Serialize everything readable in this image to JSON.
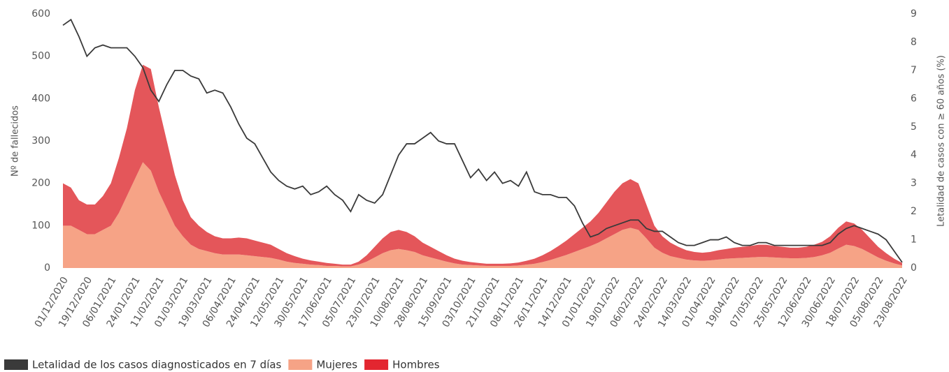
{
  "chart_data": {
    "type": "area",
    "stacked": true,
    "ylabel": "Nº de fallecidos",
    "y2label": "Letalidad de casos con ≥ 60 años (%)",
    "ylim": [
      0,
      600
    ],
    "yticks": [
      0,
      100,
      200,
      300,
      400,
      500,
      600
    ],
    "y2lim": [
      0,
      9
    ],
    "y2ticks": [
      0,
      1,
      2,
      3,
      4,
      5,
      6,
      7,
      8,
      9
    ],
    "categories": [
      "01/12/2020",
      null,
      null,
      "19/12/2020",
      null,
      null,
      "06/01/2021",
      null,
      null,
      "24/01/2021",
      null,
      null,
      "11/02/2021",
      null,
      null,
      "01/03/2021",
      null,
      null,
      "19/03/2021",
      null,
      null,
      "06/04/2021",
      null,
      null,
      "24/04/2021",
      null,
      null,
      "12/05/2021",
      null,
      null,
      "30/05/2021",
      null,
      null,
      "17/06/2021",
      null,
      null,
      "05/07/2021",
      null,
      null,
      "23/07/2021",
      null,
      null,
      "10/08/2021",
      null,
      null,
      "28/08/2021",
      null,
      null,
      "15/09/2021",
      null,
      null,
      "03/10/2021",
      null,
      null,
      "21/10/2021",
      null,
      null,
      "08/11/2021",
      null,
      null,
      "26/11/2021",
      null,
      null,
      "14/12/2021",
      null,
      null,
      "01/01/2022",
      null,
      null,
      "19/01/2022",
      null,
      null,
      "06/02/2022",
      null,
      null,
      "24/02/2022",
      null,
      null,
      "14/03/2022",
      null,
      null,
      "01/04/2022",
      null,
      null,
      "19/04/2022",
      null,
      null,
      "07/05/2022",
      null,
      null,
      "25/05/2022",
      null,
      null,
      "12/06/2022",
      null,
      null,
      "30/06/2022",
      null,
      null,
      "18/07/2022",
      null,
      null,
      "05/08/2022",
      null,
      null,
      "23/08/2022"
    ],
    "series": [
      {
        "name": "Letalidad de los casos diagnosticados en 7 días",
        "color": "#3a3a3a",
        "type": "line",
        "axis": "y2",
        "values": [
          8.6,
          8.8,
          8.2,
          7.5,
          7.8,
          7.9,
          7.8,
          7.8,
          7.8,
          7.5,
          7.1,
          6.3,
          5.9,
          6.5,
          7.0,
          7.0,
          6.8,
          6.7,
          6.2,
          6.3,
          6.2,
          5.7,
          5.1,
          4.6,
          4.4,
          3.9,
          3.4,
          3.1,
          2.9,
          2.8,
          2.9,
          2.6,
          2.7,
          2.9,
          2.6,
          2.4,
          2.0,
          2.6,
          2.4,
          2.3,
          2.6,
          3.3,
          4.0,
          4.4,
          4.4,
          4.6,
          4.8,
          4.5,
          4.4,
          4.4,
          3.8,
          3.2,
          3.5,
          3.1,
          3.4,
          3.0,
          3.1,
          2.9,
          3.4,
          2.7,
          2.6,
          2.6,
          2.5,
          2.5,
          2.2,
          1.6,
          1.1,
          1.2,
          1.4,
          1.5,
          1.6,
          1.7,
          1.7,
          1.4,
          1.3,
          1.3,
          1.1,
          0.9,
          0.8,
          0.8,
          0.9,
          1.0,
          1.0,
          1.1,
          0.9,
          0.8,
          0.8,
          0.9,
          0.9,
          0.8,
          0.8,
          0.8,
          0.8,
          0.8,
          0.8,
          0.8,
          0.9,
          1.2,
          1.4,
          1.5,
          1.4,
          1.3,
          1.2,
          1.0,
          0.6,
          0.2
        ]
      },
      {
        "name": "Mujeres",
        "color": "#f6a386",
        "type": "area",
        "values": [
          100,
          100,
          90,
          80,
          80,
          90,
          100,
          130,
          170,
          210,
          250,
          230,
          180,
          140,
          100,
          75,
          55,
          45,
          40,
          35,
          32,
          32,
          32,
          30,
          28,
          26,
          24,
          20,
          15,
          12,
          10,
          8,
          7,
          5,
          5,
          4,
          4,
          8,
          15,
          25,
          35,
          42,
          45,
          42,
          38,
          30,
          25,
          20,
          15,
          11,
          8,
          7,
          6,
          5,
          5,
          5,
          5,
          6,
          8,
          10,
          14,
          19,
          25,
          31,
          38,
          45,
          52,
          60,
          70,
          80,
          90,
          95,
          90,
          70,
          48,
          36,
          28,
          24,
          20,
          18,
          17,
          18,
          20,
          22,
          23,
          24,
          25,
          26,
          26,
          25,
          24,
          23,
          23,
          24,
          26,
          30,
          36,
          46,
          55,
          52,
          45,
          35,
          25,
          17,
          11,
          6
        ]
      },
      {
        "name": "Hombres",
        "color": "#e4565a",
        "legend_color": "#e32630",
        "type": "area",
        "values": [
          100,
          90,
          70,
          70,
          70,
          80,
          100,
          130,
          160,
          210,
          230,
          240,
          200,
          160,
          120,
          85,
          65,
          55,
          45,
          40,
          38,
          38,
          40,
          40,
          37,
          34,
          31,
          25,
          20,
          16,
          12,
          10,
          8,
          7,
          5,
          4,
          4,
          7,
          15,
          25,
          35,
          43,
          45,
          43,
          37,
          30,
          25,
          20,
          15,
          11,
          9,
          7,
          6,
          5,
          5,
          5,
          6,
          7,
          9,
          12,
          16,
          21,
          27,
          34,
          42,
          50,
          58,
          70,
          85,
          100,
          110,
          115,
          110,
          80,
          52,
          39,
          32,
          26,
          22,
          20,
          19,
          20,
          22,
          23,
          25,
          26,
          27,
          29,
          29,
          27,
          26,
          25,
          25,
          26,
          29,
          32,
          39,
          49,
          55,
          53,
          45,
          35,
          25,
          18,
          11,
          6
        ]
      }
    ]
  }
}
